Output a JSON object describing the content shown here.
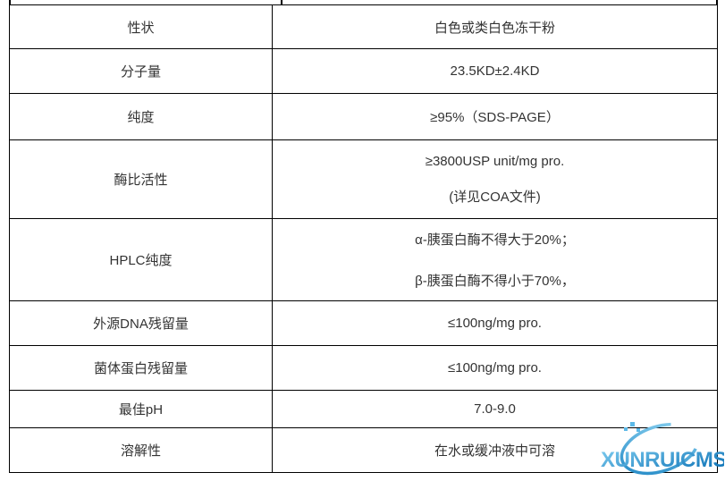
{
  "table": {
    "border_color": "#000000",
    "text_color": "#333333",
    "rows": [
      {
        "label": "性状",
        "values": [
          "白色或类白色冻干粉"
        ]
      },
      {
        "label": "分子量",
        "values": [
          "23.5KD±2.4KD"
        ]
      },
      {
        "label": "纯度",
        "values": [
          "≥95%（SDS-PAGE）"
        ]
      },
      {
        "label": "酶比活性",
        "values": [
          "≥3800USP unit/mg pro.",
          "(详见COA文件)"
        ]
      },
      {
        "label": "HPLC纯度",
        "values": [
          "α-胰蛋白酶不得大于20%；",
          "β-胰蛋白酶不得小于70%，"
        ]
      },
      {
        "label": "外源DNA残留量",
        "values": [
          "≤100ng/mg pro."
        ]
      },
      {
        "label": "菌体蛋白残留量",
        "values": [
          "≤100ng/mg pro."
        ]
      },
      {
        "label": "最佳pH",
        "values": [
          "7.0-9.0"
        ]
      },
      {
        "label": "溶解性",
        "values": [
          "在水或缓冲液中可溶"
        ]
      }
    ]
  },
  "watermark": {
    "text": "XUNRUICMS",
    "color_light": "#7fcdf0",
    "color_dark": "#1478ba"
  }
}
